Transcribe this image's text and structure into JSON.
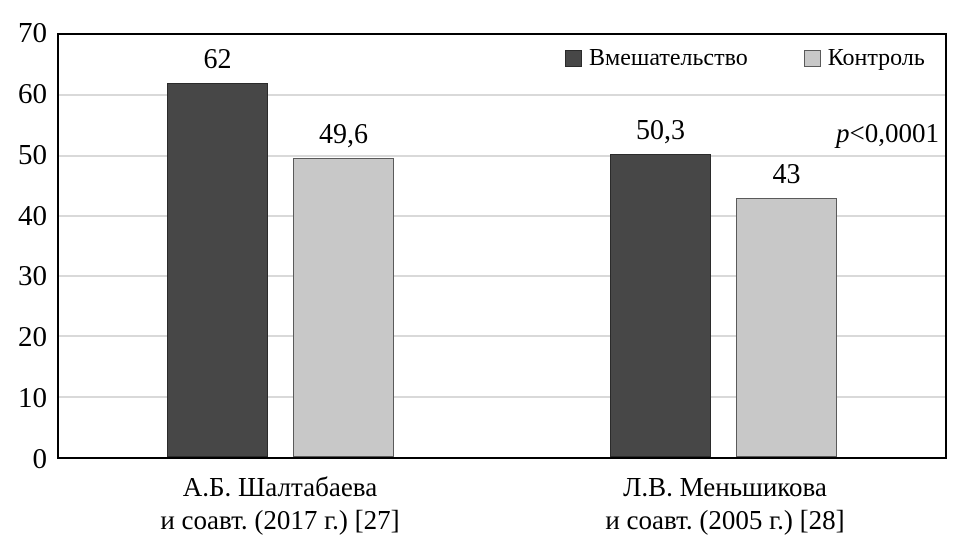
{
  "chart_data": {
    "type": "bar",
    "title": "",
    "xlabel": "",
    "ylabel": "",
    "ylim": [
      0,
      70
    ],
    "ytick_step": 10,
    "yticks": [
      "0",
      "10",
      "20",
      "30",
      "40",
      "50",
      "60",
      "70"
    ],
    "grid": true,
    "legend_position": "top-inside",
    "categories": [
      [
        "А.Б. Шалтабаева",
        "и соавт. (2017 г.) [27]"
      ],
      [
        "Л.В. Меньшикова",
        "и соавт. (2005 г.) [28]"
      ]
    ],
    "series": [
      {
        "name": "Вмешательство",
        "values": [
          62,
          50.3
        ],
        "labels": [
          "62",
          "50,3"
        ],
        "color": "#474747"
      },
      {
        "name": "Контроль",
        "values": [
          49.6,
          43
        ],
        "labels": [
          "49,6",
          "43"
        ],
        "color": "#c8c8c8"
      }
    ],
    "annotation": {
      "p": "p",
      "rest": "<0,0001"
    }
  },
  "colors": {
    "intervention_bar": "#474747",
    "control_bar": "#c8c8c8",
    "gridline": "#d9d9d9",
    "plot_border": "#000000",
    "background": "#ffffff",
    "text": "#000000"
  }
}
